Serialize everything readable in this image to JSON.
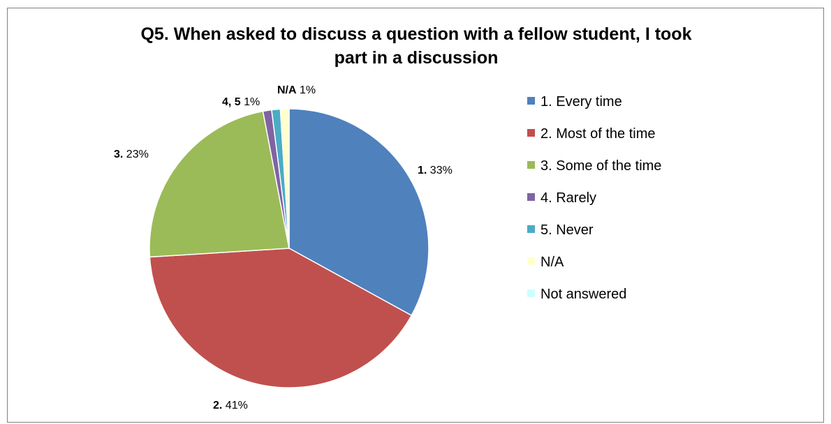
{
  "chart_data": {
    "type": "pie",
    "title_lines": [
      "Q5. When asked to discuss a question with a fellow student, I took",
      "part in a discussion"
    ],
    "slices": [
      {
        "category": "1. Every time",
        "value": 33,
        "color": "#4F81BD"
      },
      {
        "category": "2. Most of the time",
        "value": 41,
        "color": "#C0504D"
      },
      {
        "category": "3. Some of the time",
        "value": 23,
        "color": "#9BBB59"
      },
      {
        "category": "4. Rarely",
        "value": 1,
        "color": "#8064A2"
      },
      {
        "category": "5. Never",
        "value": 1,
        "color": "#4BACC6"
      },
      {
        "category": "N/A",
        "value": 1,
        "color": "#FFFFCC"
      },
      {
        "category": "Not answered",
        "value": 0,
        "color": "#CCFFFF"
      }
    ],
    "data_labels": [
      {
        "bold": "1.",
        "text": " 33%"
      },
      {
        "bold": "2.",
        "text": " 41%"
      },
      {
        "bold": "3.",
        "text": " 23%"
      },
      {
        "bold": "4, 5",
        "text": " 1%"
      },
      {
        "bold": "N/A",
        "text": " 1%"
      }
    ],
    "legend_position": "right"
  }
}
